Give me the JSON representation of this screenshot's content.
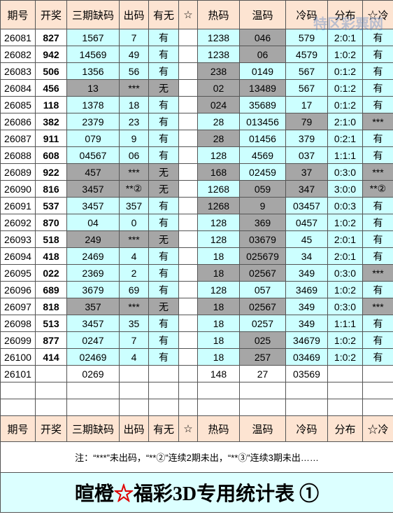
{
  "watermark": "特区彩票网",
  "header": [
    "期号",
    "开奖",
    "三期缺码",
    "出码",
    "有无",
    "☆",
    "热码",
    "温码",
    "冷码",
    "分布",
    "☆冷"
  ],
  "rows": [
    [
      "26081",
      "827",
      "1567",
      "7",
      "有",
      "1238",
      "046",
      "579",
      "2:0:1",
      "有"
    ],
    [
      "26082",
      "942",
      "14569",
      "49",
      "有",
      "1238",
      "06",
      "4579",
      "1:0:2",
      "有"
    ],
    [
      "26083",
      "506",
      "1356",
      "56",
      "有",
      "238",
      "0149",
      "567",
      "0:1:2",
      "有"
    ],
    [
      "26084",
      "456",
      "13",
      "***",
      "无",
      "02",
      "13489",
      "567",
      "0:1:2",
      "有"
    ],
    [
      "26085",
      "118",
      "1378",
      "18",
      "有",
      "024",
      "35689",
      "17",
      "0:1:2",
      "有"
    ],
    [
      "26086",
      "382",
      "2379",
      "23",
      "有",
      "28",
      "013456",
      "79",
      "2:1:0",
      "***"
    ],
    [
      "26087",
      "911",
      "079",
      "9",
      "有",
      "28",
      "01456",
      "379",
      "0:2:1",
      "有"
    ],
    [
      "26088",
      "608",
      "04567",
      "06",
      "有",
      "128",
      "4569",
      "037",
      "1:1:1",
      "有"
    ],
    [
      "26089",
      "922",
      "457",
      "***",
      "无",
      "168",
      "02459",
      "37",
      "0:3:0",
      "***"
    ],
    [
      "26090",
      "816",
      "3457",
      "**②",
      "无",
      "1268",
      "059",
      "347",
      "3:0:0",
      "**②"
    ],
    [
      "26091",
      "537",
      "3457",
      "357",
      "有",
      "1268",
      "9",
      "03457",
      "0:0:3",
      "有"
    ],
    [
      "26092",
      "870",
      "04",
      "0",
      "有",
      "128",
      "369",
      "0457",
      "1:0:2",
      "有"
    ],
    [
      "26093",
      "518",
      "249",
      "***",
      "无",
      "128",
      "03679",
      "45",
      "2:0:1",
      "有"
    ],
    [
      "26094",
      "418",
      "2469",
      "4",
      "有",
      "18",
      "025679",
      "34",
      "2:0:1",
      "有"
    ],
    [
      "26095",
      "022",
      "2369",
      "2",
      "有",
      "18",
      "02567",
      "349",
      "0:3:0",
      "***"
    ],
    [
      "26096",
      "689",
      "3679",
      "69",
      "有",
      "128",
      "057",
      "3469",
      "1:0:2",
      "有"
    ],
    [
      "26097",
      "818",
      "357",
      "***",
      "无",
      "18",
      "02567",
      "349",
      "0:3:0",
      "***"
    ],
    [
      "26098",
      "513",
      "3457",
      "35",
      "有",
      "18",
      "0257",
      "349",
      "1:1:1",
      "有"
    ],
    [
      "26099",
      "877",
      "0247",
      "7",
      "有",
      "18",
      "025",
      "34679",
      "1:0:2",
      "有"
    ],
    [
      "26100",
      "414",
      "02469",
      "4",
      "有",
      "18",
      "257",
      "03469",
      "1:0:2",
      "有"
    ],
    [
      "26101",
      null,
      "0269",
      null,
      null,
      "148",
      "27",
      "03569",
      null,
      null
    ]
  ],
  "note": "注：“***”未出码，“**②”连续2期未出，“**③”连续3期未出……",
  "title": [
    "暄橙",
    "☆",
    "福彩3D专用统计表 ①"
  ]
}
